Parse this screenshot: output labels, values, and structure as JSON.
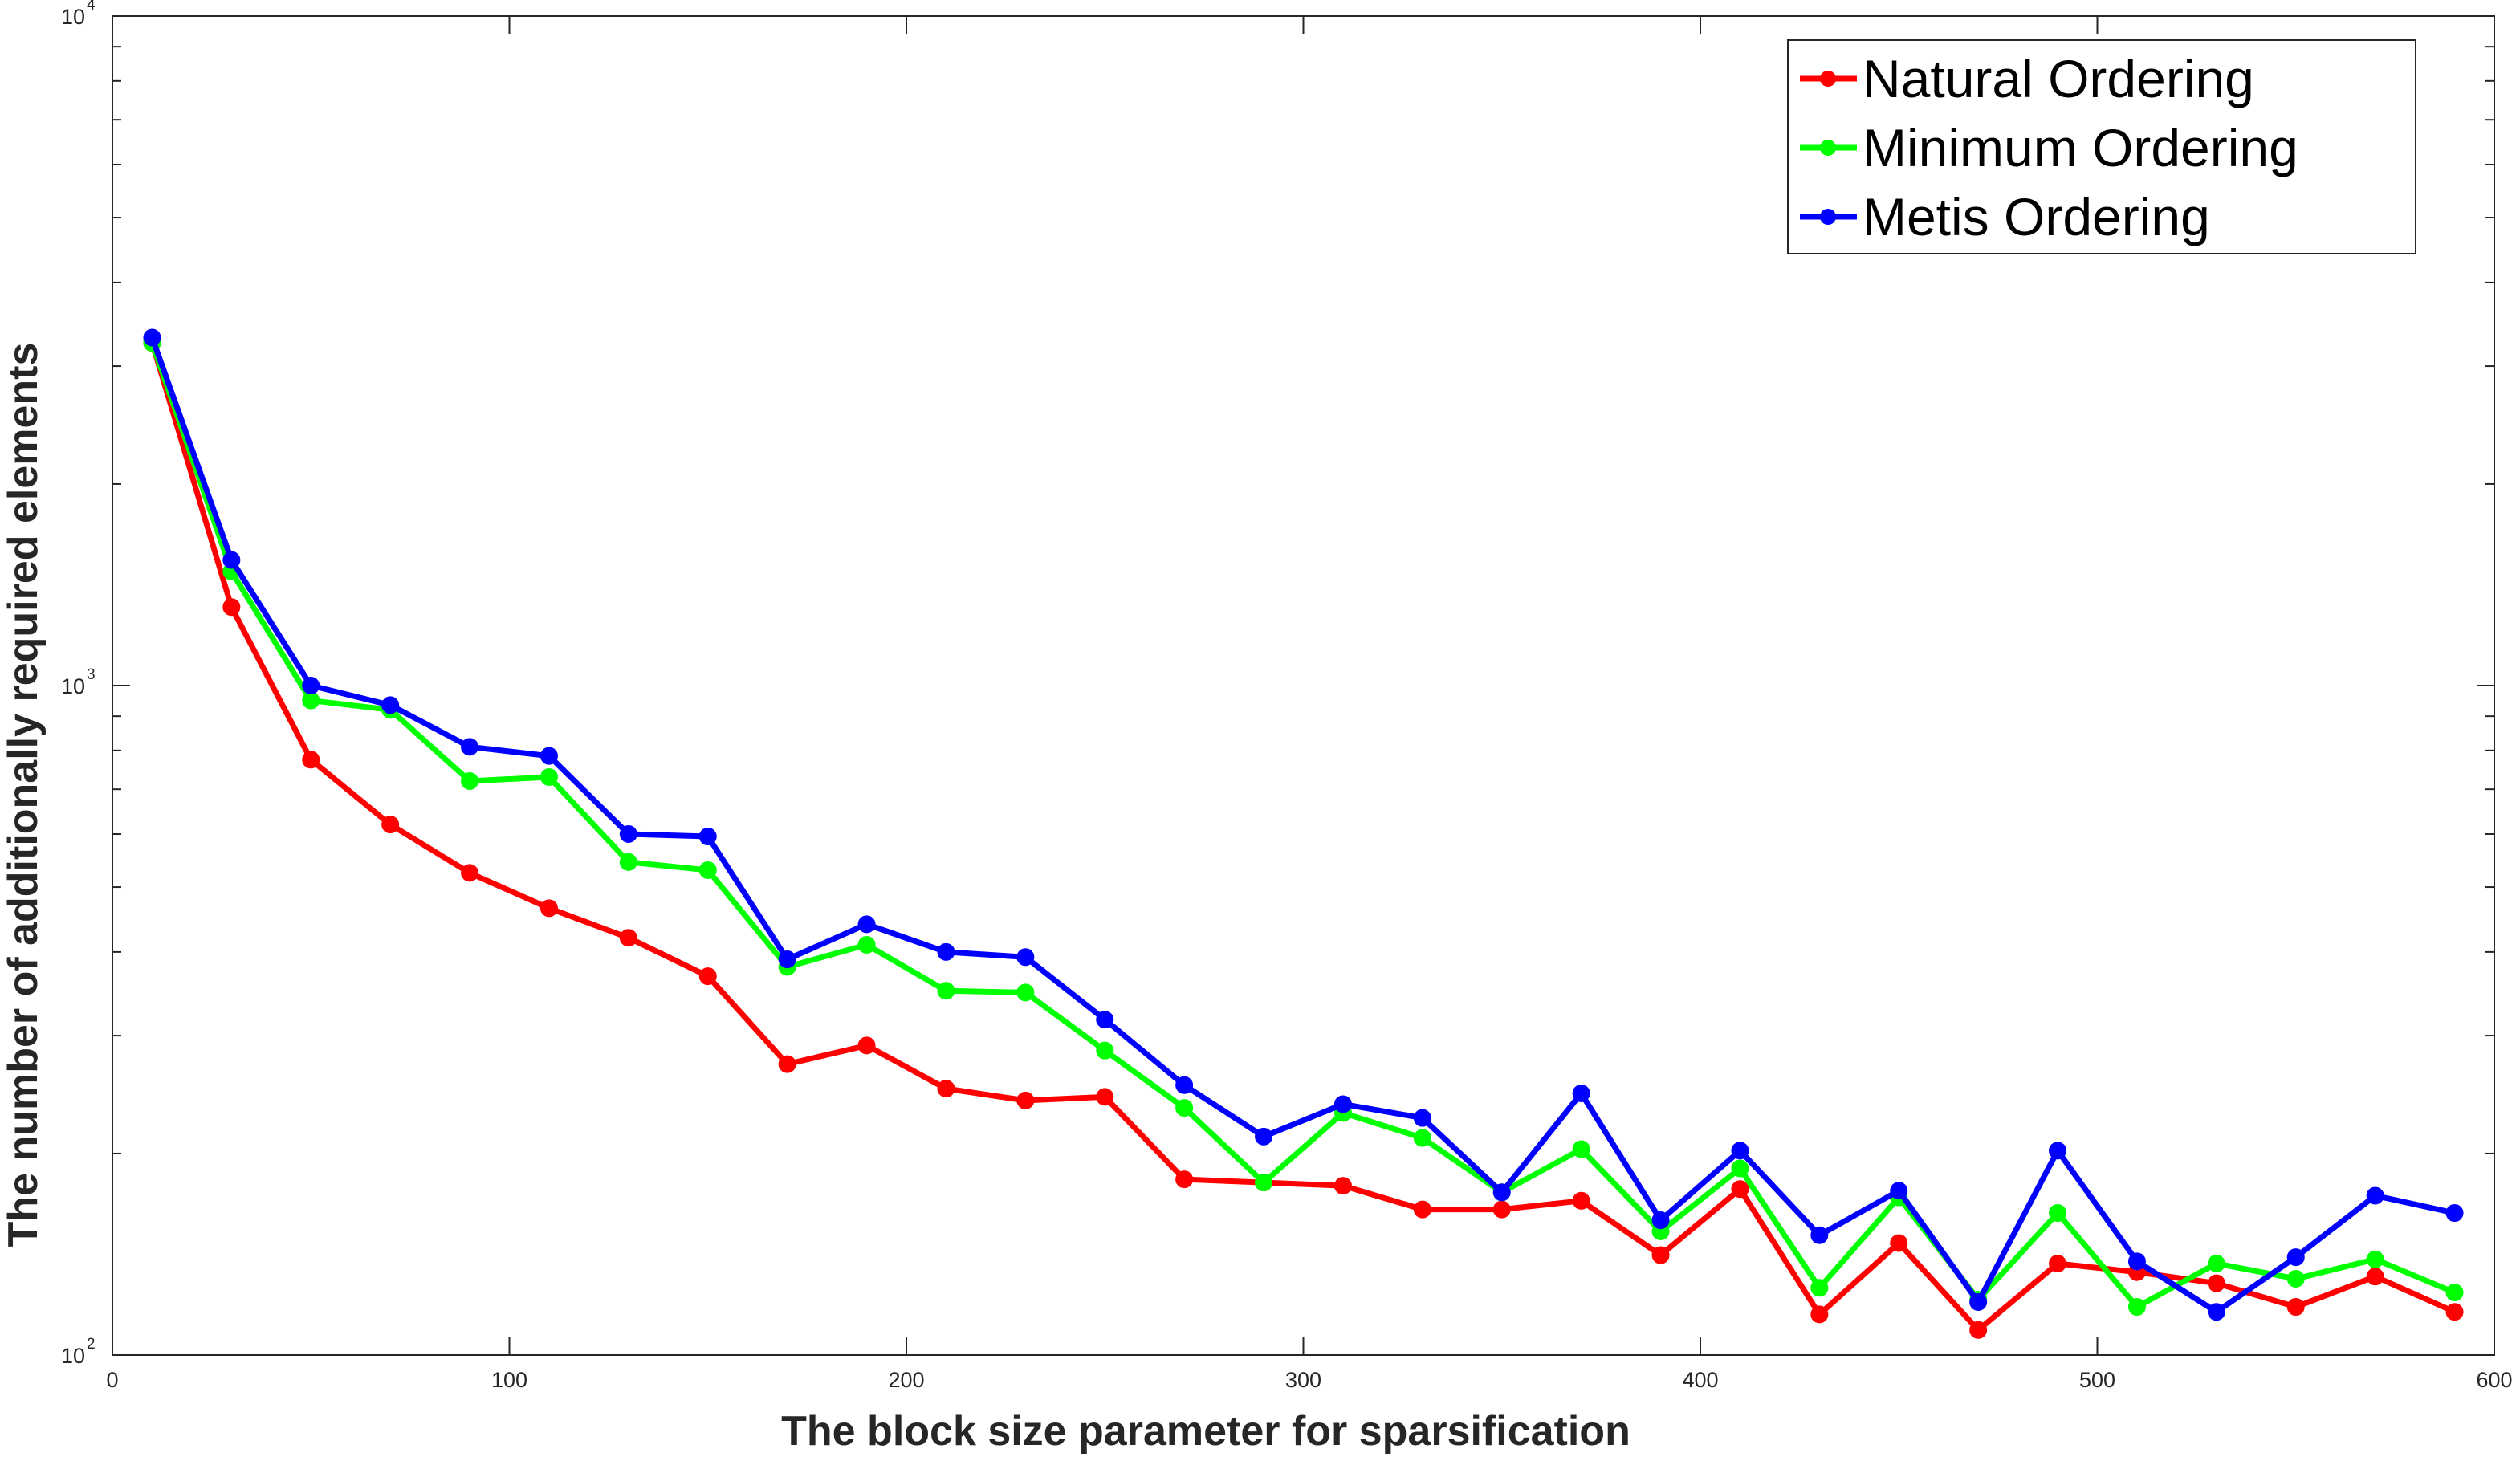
{
  "chart_data": {
    "type": "line",
    "title": "",
    "xlabel": "The block size parameter for sparsification",
    "ylabel": "The number of additionally required elements",
    "xlim": [
      0,
      600
    ],
    "ylim": [
      100,
      10000
    ],
    "yscale": "log",
    "grid": false,
    "legend_position": "top-right",
    "x_ticks": [
      0,
      100,
      200,
      300,
      400,
      500,
      600
    ],
    "y_ticks": [
      {
        "base": "10",
        "exp": "2"
      },
      {
        "base": "10",
        "exp": "3"
      },
      {
        "base": "10",
        "exp": "4"
      }
    ],
    "x": [
      10,
      30,
      50,
      70,
      90,
      110,
      130,
      150,
      170,
      190,
      210,
      230,
      250,
      270,
      290,
      310,
      330,
      350,
      370,
      390,
      410,
      430,
      450,
      470,
      490,
      510,
      530,
      550,
      570,
      590
    ],
    "series": [
      {
        "name": "Natural Ordering",
        "color": "#ff0000",
        "values": [
          3250,
          1310,
          775,
          620,
          525,
          465,
          420,
          368,
          272,
          290,
          250,
          240,
          243,
          183,
          181,
          179,
          165,
          165,
          170,
          141,
          177,
          115,
          147,
          109,
          137,
          133,
          128,
          118,
          131,
          116
        ]
      },
      {
        "name": "Minimum Ordering",
        "color": "#00ff00",
        "values": [
          3250,
          1480,
          950,
          920,
          720,
          730,
          545,
          530,
          380,
          410,
          350,
          348,
          285,
          234,
          181,
          230,
          211,
          175,
          203,
          153,
          190,
          126,
          172,
          121,
          163,
          118,
          137,
          130,
          139,
          124
        ]
      },
      {
        "name": "Metis Ordering",
        "color": "#0000ff",
        "values": [
          3310,
          1540,
          1000,
          935,
          810,
          785,
          600,
          595,
          390,
          440,
          400,
          393,
          317,
          253,
          212,
          237,
          226,
          175,
          246,
          159,
          202,
          151,
          176,
          120,
          202,
          138,
          116,
          140,
          173,
          163
        ]
      }
    ]
  }
}
